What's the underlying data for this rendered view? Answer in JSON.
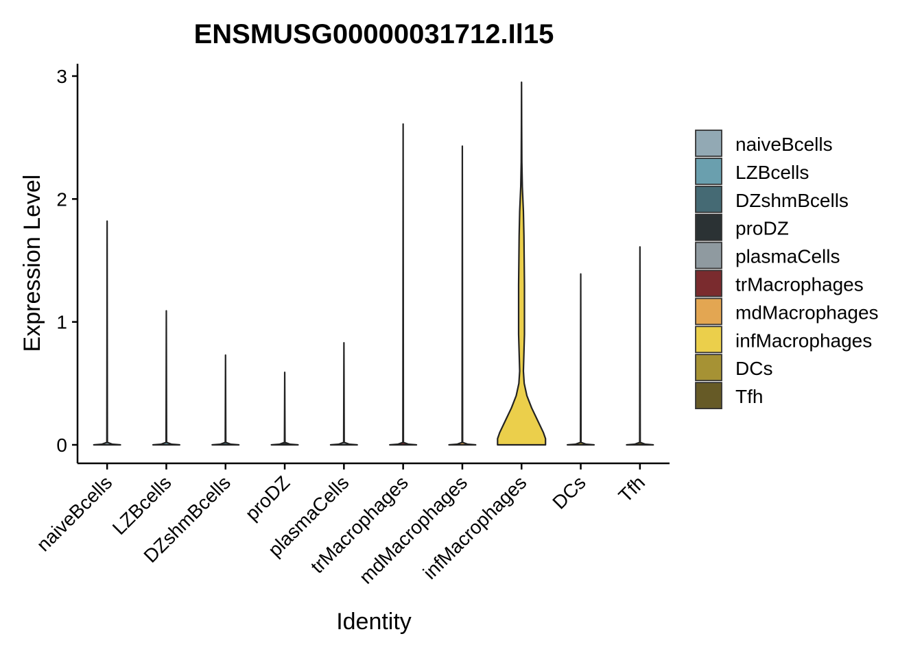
{
  "chart_data": {
    "type": "violin",
    "title": "ENSMUSG00000031712.Il15",
    "xlabel": "Identity",
    "ylabel": "Expression Level",
    "ylim": [
      -0.15,
      3.1
    ],
    "y_ticks": [
      0,
      1,
      2,
      3
    ],
    "grid": false,
    "legend_position": "right",
    "categories": [
      "naiveBcells",
      "LZBcells",
      "DZshmBcells",
      "proDZ",
      "plasmaCells",
      "trMacrophages",
      "mdMacrophages",
      "infMacrophages",
      "DCs",
      "Tfh"
    ],
    "colors": [
      "#92A9B4",
      "#6A9FAE",
      "#456A74",
      "#2B3234",
      "#8F9AA0",
      "#7A2B2E",
      "#E3A652",
      "#EBCF4B",
      "#A69234",
      "#665A26"
    ],
    "max_values": [
      1.82,
      1.09,
      0.73,
      0.59,
      0.83,
      2.61,
      2.43,
      2.95,
      1.39,
      1.61
    ],
    "density_profiles": [
      [
        [
          0,
          0.5
        ],
        [
          0.005,
          0.2
        ],
        [
          0.02,
          0.01
        ],
        [
          1.82,
          0
        ]
      ],
      [
        [
          0,
          0.5
        ],
        [
          0.005,
          0.2
        ],
        [
          0.02,
          0.01
        ],
        [
          1.09,
          0
        ]
      ],
      [
        [
          0,
          0.5
        ],
        [
          0.005,
          0.2
        ],
        [
          0.02,
          0.01
        ],
        [
          0.73,
          0
        ]
      ],
      [
        [
          0,
          0.5
        ],
        [
          0.005,
          0.2
        ],
        [
          0.02,
          0.01
        ],
        [
          0.59,
          0
        ]
      ],
      [
        [
          0,
          0.5
        ],
        [
          0.005,
          0.2
        ],
        [
          0.02,
          0.01
        ],
        [
          0.83,
          0
        ]
      ],
      [
        [
          0,
          0.5
        ],
        [
          0.005,
          0.2
        ],
        [
          0.02,
          0.01
        ],
        [
          2.61,
          0
        ]
      ],
      [
        [
          0,
          0.5
        ],
        [
          0.005,
          0.2
        ],
        [
          0.02,
          0.01
        ],
        [
          2.43,
          0
        ]
      ],
      [
        [
          0,
          0.9
        ],
        [
          0.05,
          0.9
        ],
        [
          0.1,
          0.82
        ],
        [
          0.2,
          0.6
        ],
        [
          0.3,
          0.38
        ],
        [
          0.4,
          0.2
        ],
        [
          0.5,
          0.1
        ],
        [
          0.6,
          0.07
        ],
        [
          0.75,
          0.09
        ],
        [
          0.9,
          0.11
        ],
        [
          1.1,
          0.11
        ],
        [
          1.3,
          0.11
        ],
        [
          1.5,
          0.1
        ],
        [
          1.7,
          0.09
        ],
        [
          1.9,
          0.07
        ],
        [
          2.1,
          0.03
        ],
        [
          2.3,
          0.012
        ],
        [
          2.6,
          0.005
        ],
        [
          2.95,
          0
        ]
      ],
      [
        [
          0,
          0.5
        ],
        [
          0.005,
          0.2
        ],
        [
          0.02,
          0.01
        ],
        [
          1.39,
          0
        ]
      ],
      [
        [
          0,
          0.5
        ],
        [
          0.005,
          0.2
        ],
        [
          0.02,
          0.01
        ],
        [
          1.61,
          0
        ]
      ]
    ]
  }
}
